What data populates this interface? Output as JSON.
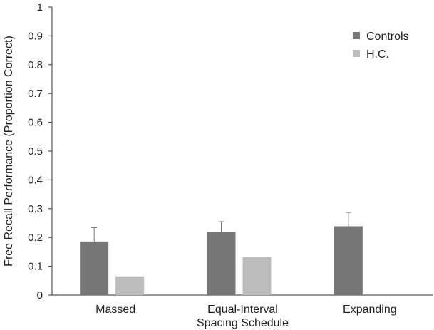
{
  "chart_data": {
    "type": "bar",
    "title": "",
    "xlabel": "",
    "ylabel": "Free Recall Performance (Proportion Correct)",
    "ylim": [
      0,
      1
    ],
    "yticks": [
      "0",
      "0.1",
      "0.2",
      "0.3",
      "0.4",
      "0.5",
      "0.6",
      "0.7",
      "0.8",
      "0.9",
      "1"
    ],
    "categories": [
      [
        "Massed"
      ],
      [
        "Equal-Interval",
        "Spacing Schedule"
      ],
      [
        "Expanding"
      ]
    ],
    "series": [
      {
        "name": "Controls",
        "color": "#777777",
        "values": [
          0.186,
          0.219,
          0.239
        ],
        "error": [
          0.048,
          0.036,
          0.048
        ]
      },
      {
        "name": "H.C.",
        "color": "#bcbcbc",
        "values": [
          0.065,
          0.132,
          null
        ],
        "error": [
          null,
          null,
          null
        ]
      }
    ],
    "grid": false,
    "legend_position": "top-right"
  }
}
